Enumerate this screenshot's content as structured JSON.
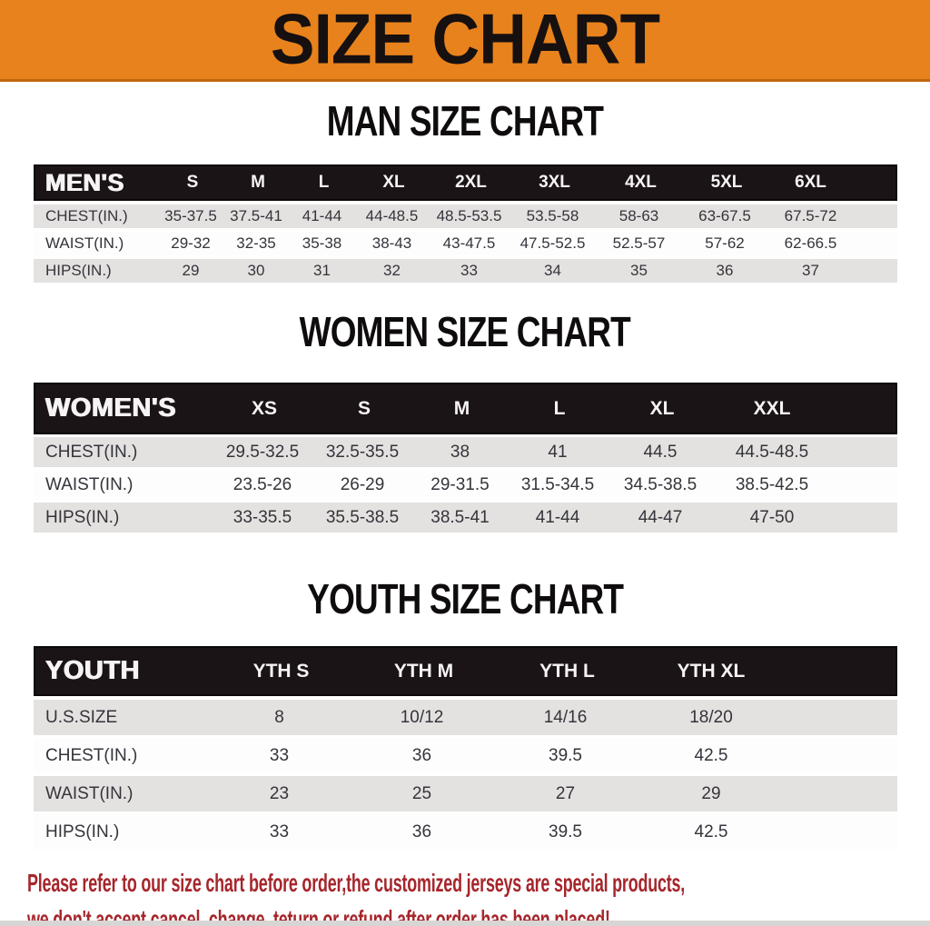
{
  "banner": {
    "title": "SIZE CHART"
  },
  "sections": [
    {
      "id": "men",
      "heading": "MAN SIZE CHART",
      "corner_label": "MEN'S",
      "columns": [
        "S",
        "M",
        "L",
        "XL",
        "2XL",
        "3XL",
        "4XL",
        "5XL",
        "6XL"
      ],
      "rows": [
        {
          "label": "CHEST(IN.)",
          "values": [
            "35-37.5",
            "37.5-41",
            "41-44",
            "44-48.5",
            "48.5-53.5",
            "53.5-58",
            "58-63",
            "63-67.5",
            "67.5-72"
          ]
        },
        {
          "label": "WAIST(IN.)",
          "values": [
            "29-32",
            "32-35",
            "35-38",
            "38-43",
            "43-47.5",
            "47.5-52.5",
            "52.5-57",
            "57-62",
            "62-66.5"
          ]
        },
        {
          "label": "HIPS(IN.)",
          "values": [
            "29",
            "30",
            "31",
            "32",
            "33",
            "34",
            "35",
            "36",
            "37"
          ]
        }
      ]
    },
    {
      "id": "women",
      "heading": "WOMEN SIZE CHART",
      "corner_label": "WOMEN'S",
      "columns": [
        "XS",
        "S",
        "M",
        "L",
        "XL",
        "XXL"
      ],
      "rows": [
        {
          "label": "CHEST(IN.)",
          "values": [
            "29.5-32.5",
            "32.5-35.5",
            "38",
            "41",
            "44.5",
            "44.5-48.5"
          ]
        },
        {
          "label": "WAIST(IN.)",
          "values": [
            "23.5-26",
            "26-29",
            "29-31.5",
            "31.5-34.5",
            "34.5-38.5",
            "38.5-42.5"
          ]
        },
        {
          "label": "HIPS(IN.)",
          "values": [
            "33-35.5",
            "35.5-38.5",
            "38.5-41",
            "41-44",
            "44-47",
            "47-50"
          ]
        }
      ]
    },
    {
      "id": "youth",
      "heading": "YOUTH SIZE CHART",
      "corner_label": "YOUTH",
      "columns": [
        "YTH S",
        "YTH M",
        "YTH L",
        "YTH XL"
      ],
      "rows": [
        {
          "label": "U.S.SIZE",
          "values": [
            "8",
            "10/12",
            "14/16",
            "18/20"
          ]
        },
        {
          "label": "CHEST(IN.)",
          "values": [
            "33",
            "36",
            "39.5",
            "42.5"
          ]
        },
        {
          "label": "WAIST(IN.)",
          "values": [
            "23",
            "25",
            "27",
            "29"
          ]
        },
        {
          "label": "HIPS(IN.)",
          "values": [
            "33",
            "36",
            "39.5",
            "42.5"
          ]
        }
      ]
    }
  ],
  "footer": {
    "line1": "Please refer to our size chart before order,the customized jerseys are special products,",
    "line2": "we don't accept cancel, change, teturn or refund after order has been placed!"
  },
  "colors": {
    "banner_orange": "#E8821C",
    "banner_border": "#C1650E",
    "header_black": "#1B1416",
    "header_text": "#F5F3F3",
    "row_gray": "#E3E2E0",
    "row_white": "#FDFDFD",
    "row_text": "#35343B",
    "footer_red": "#A6262C"
  },
  "chart_data": [
    {
      "type": "table",
      "title": "MAN SIZE CHART",
      "columns": [
        "MEN'S",
        "S",
        "M",
        "L",
        "XL",
        "2XL",
        "3XL",
        "4XL",
        "5XL",
        "6XL"
      ],
      "rows": [
        [
          "CHEST(IN.)",
          "35-37.5",
          "37.5-41",
          "41-44",
          "44-48.5",
          "48.5-53.5",
          "53.5-58",
          "58-63",
          "63-67.5",
          "67.5-72"
        ],
        [
          "WAIST(IN.)",
          "29-32",
          "32-35",
          "35-38",
          "38-43",
          "43-47.5",
          "47.5-52.5",
          "52.5-57",
          "57-62",
          "62-66.5"
        ],
        [
          "HIPS(IN.)",
          "29",
          "30",
          "31",
          "32",
          "33",
          "34",
          "35",
          "36",
          "37"
        ]
      ]
    },
    {
      "type": "table",
      "title": "WOMEN SIZE CHART",
      "columns": [
        "WOMEN'S",
        "XS",
        "S",
        "M",
        "L",
        "XL",
        "XXL"
      ],
      "rows": [
        [
          "CHEST(IN.)",
          "29.5-32.5",
          "32.5-35.5",
          "38",
          "41",
          "44.5",
          "44.5-48.5"
        ],
        [
          "WAIST(IN.)",
          "23.5-26",
          "26-29",
          "29-31.5",
          "31.5-34.5",
          "34.5-38.5",
          "38.5-42.5"
        ],
        [
          "HIPS(IN.)",
          "33-35.5",
          "35.5-38.5",
          "38.5-41",
          "41-44",
          "44-47",
          "47-50"
        ]
      ]
    },
    {
      "type": "table",
      "title": "YOUTH SIZE CHART",
      "columns": [
        "YOUTH",
        "YTH S",
        "YTH M",
        "YTH L",
        "YTH XL"
      ],
      "rows": [
        [
          "U.S.SIZE",
          "8",
          "10/12",
          "14/16",
          "18/20"
        ],
        [
          "CHEST(IN.)",
          "33",
          "36",
          "39.5",
          "42.5"
        ],
        [
          "WAIST(IN.)",
          "23",
          "25",
          "27",
          "29"
        ],
        [
          "HIPS(IN.)",
          "33",
          "36",
          "39.5",
          "42.5"
        ]
      ]
    }
  ]
}
